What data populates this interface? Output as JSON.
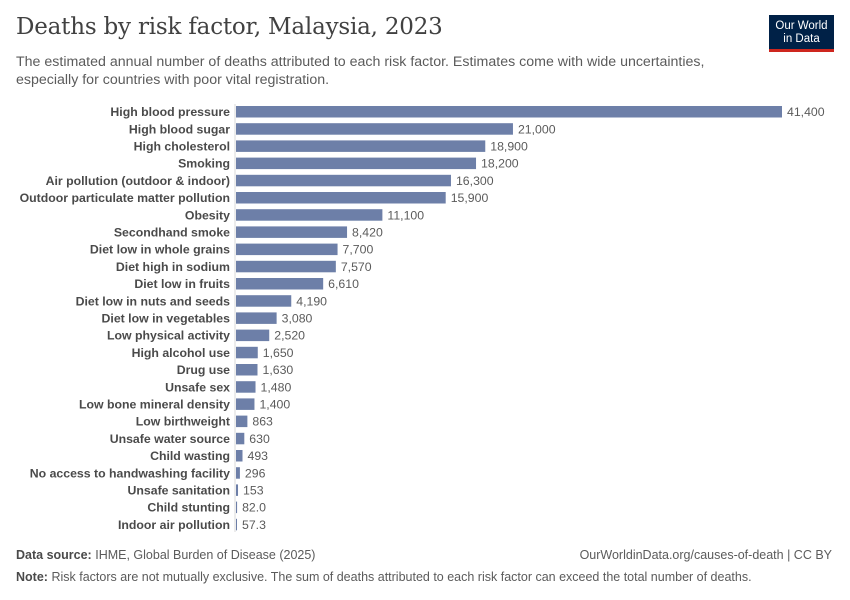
{
  "chart_data": {
    "type": "bar",
    "orientation": "horizontal",
    "title": "Deaths by risk factor, Malaysia, 2023",
    "subtitle": "The estimated annual number of deaths attributed to each risk factor. Estimates come with wide uncertainties, especially for countries with poor vital registration.",
    "categories": [
      "High blood pressure",
      "High blood sugar",
      "High cholesterol",
      "Smoking",
      "Air pollution (outdoor & indoor)",
      "Outdoor particulate matter pollution",
      "Obesity",
      "Secondhand smoke",
      "Diet low in whole grains",
      "Diet high in sodium",
      "Diet low in fruits",
      "Diet low in nuts and seeds",
      "Diet low in vegetables",
      "Low physical activity",
      "High alcohol use",
      "Drug use",
      "Unsafe sex",
      "Low bone mineral density",
      "Low birthweight",
      "Unsafe water source",
      "Child wasting",
      "No access to handwashing facility",
      "Unsafe sanitation",
      "Child stunting",
      "Indoor air pollution"
    ],
    "values": [
      41400,
      21000,
      18900,
      18200,
      16300,
      15900,
      11100,
      8420,
      7700,
      7570,
      6610,
      4190,
      3080,
      2520,
      1650,
      1630,
      1480,
      1400,
      863,
      630,
      493,
      296,
      153,
      82.0,
      57.3
    ],
    "value_labels": [
      "41,400",
      "21,000",
      "18,900",
      "18,200",
      "16,300",
      "15,900",
      "11,100",
      "8,420",
      "7,700",
      "7,570",
      "6,610",
      "4,190",
      "3,080",
      "2,520",
      "1,650",
      "1,630",
      "1,480",
      "1,400",
      "863",
      "630",
      "493",
      "296",
      "153",
      "82.0",
      "57.3"
    ],
    "xlim": [
      0,
      41400
    ],
    "bar_color": "#6d7fa8",
    "legend": "none",
    "grid": false
  },
  "logo": {
    "line1": "Our World",
    "line2": "in Data"
  },
  "footer": {
    "source_label": "Data source:",
    "source_text": "IHME, Global Burden of Disease (2025)",
    "url": "OurWorldinData.org/causes-of-death | CC BY",
    "note_label": "Note:",
    "note_text": "Risk factors are not mutually exclusive. The sum of deaths attributed to each risk factor can exceed the total number of deaths."
  }
}
